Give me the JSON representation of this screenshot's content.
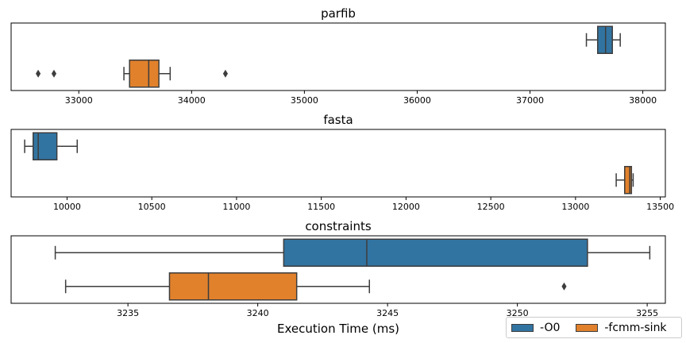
{
  "chart_data": [
    {
      "type": "boxplot",
      "orientation": "horizontal",
      "title": "parfib",
      "xlabel": "",
      "xlim": [
        32400,
        38200
      ],
      "xticks": [
        33000,
        34000,
        35000,
        36000,
        37000,
        38000
      ],
      "xtick_labels": [
        "33000",
        "34000",
        "35000",
        "36000",
        "37000",
        "38000"
      ],
      "series": [
        {
          "name": "-O0",
          "whisker_low": 37500,
          "q1": 37600,
          "median": 37670,
          "q3": 37730,
          "whisker_high": 37800,
          "outliers": []
        },
        {
          "name": "-fcmm-sink",
          "whisker_low": 33400,
          "q1": 33450,
          "median": 33620,
          "q3": 33710,
          "whisker_high": 33810,
          "outliers": [
            32640,
            32780,
            34300
          ]
        }
      ]
    },
    {
      "type": "boxplot",
      "orientation": "horizontal",
      "title": "fasta",
      "xlabel": "",
      "xlim": [
        9670,
        13530
      ],
      "xticks": [
        10000,
        10500,
        11000,
        11500,
        12000,
        12500,
        13000,
        13500
      ],
      "xtick_labels": [
        "10000",
        "10500",
        "11000",
        "11500",
        "12000",
        "12500",
        "13000",
        "13500"
      ],
      "series": [
        {
          "name": "-O0",
          "whisker_low": 9750,
          "q1": 9800,
          "median": 9830,
          "q3": 9940,
          "whisker_high": 10060,
          "outliers": []
        },
        {
          "name": "-fcmm-sink",
          "whisker_low": 13240,
          "q1": 13290,
          "median": 13320,
          "q3": 13330,
          "whisker_high": 13340,
          "outliers": []
        }
      ]
    },
    {
      "type": "boxplot",
      "orientation": "horizontal",
      "title": "constraints",
      "xlabel": "Execution Time (ms)",
      "xlim": [
        3230.5,
        3255.7
      ],
      "xticks": [
        3235,
        3240,
        3245,
        3250,
        3255
      ],
      "xtick_labels": [
        "3235",
        "3240",
        "3245",
        "3250",
        "3255"
      ],
      "series": [
        {
          "name": "-O0",
          "whisker_low": 3232.2,
          "q1": 3241.0,
          "median": 3244.2,
          "q3": 3252.7,
          "whisker_high": 3255.1,
          "outliers": []
        },
        {
          "name": "-fcmm-sink",
          "whisker_low": 3232.6,
          "q1": 3236.6,
          "median": 3238.1,
          "q3": 3241.5,
          "whisker_high": 3244.3,
          "outliers": [
            3251.8
          ]
        }
      ]
    }
  ],
  "legend": {
    "placement": "bottom-right",
    "entries": [
      {
        "label": "-O0",
        "color": "#3274a1"
      },
      {
        "label": "-fcmm-sink",
        "color": "#e1812c"
      }
    ]
  },
  "style": {
    "box_edge_color": "#3d3d3d",
    "axis_color": "#000000"
  }
}
